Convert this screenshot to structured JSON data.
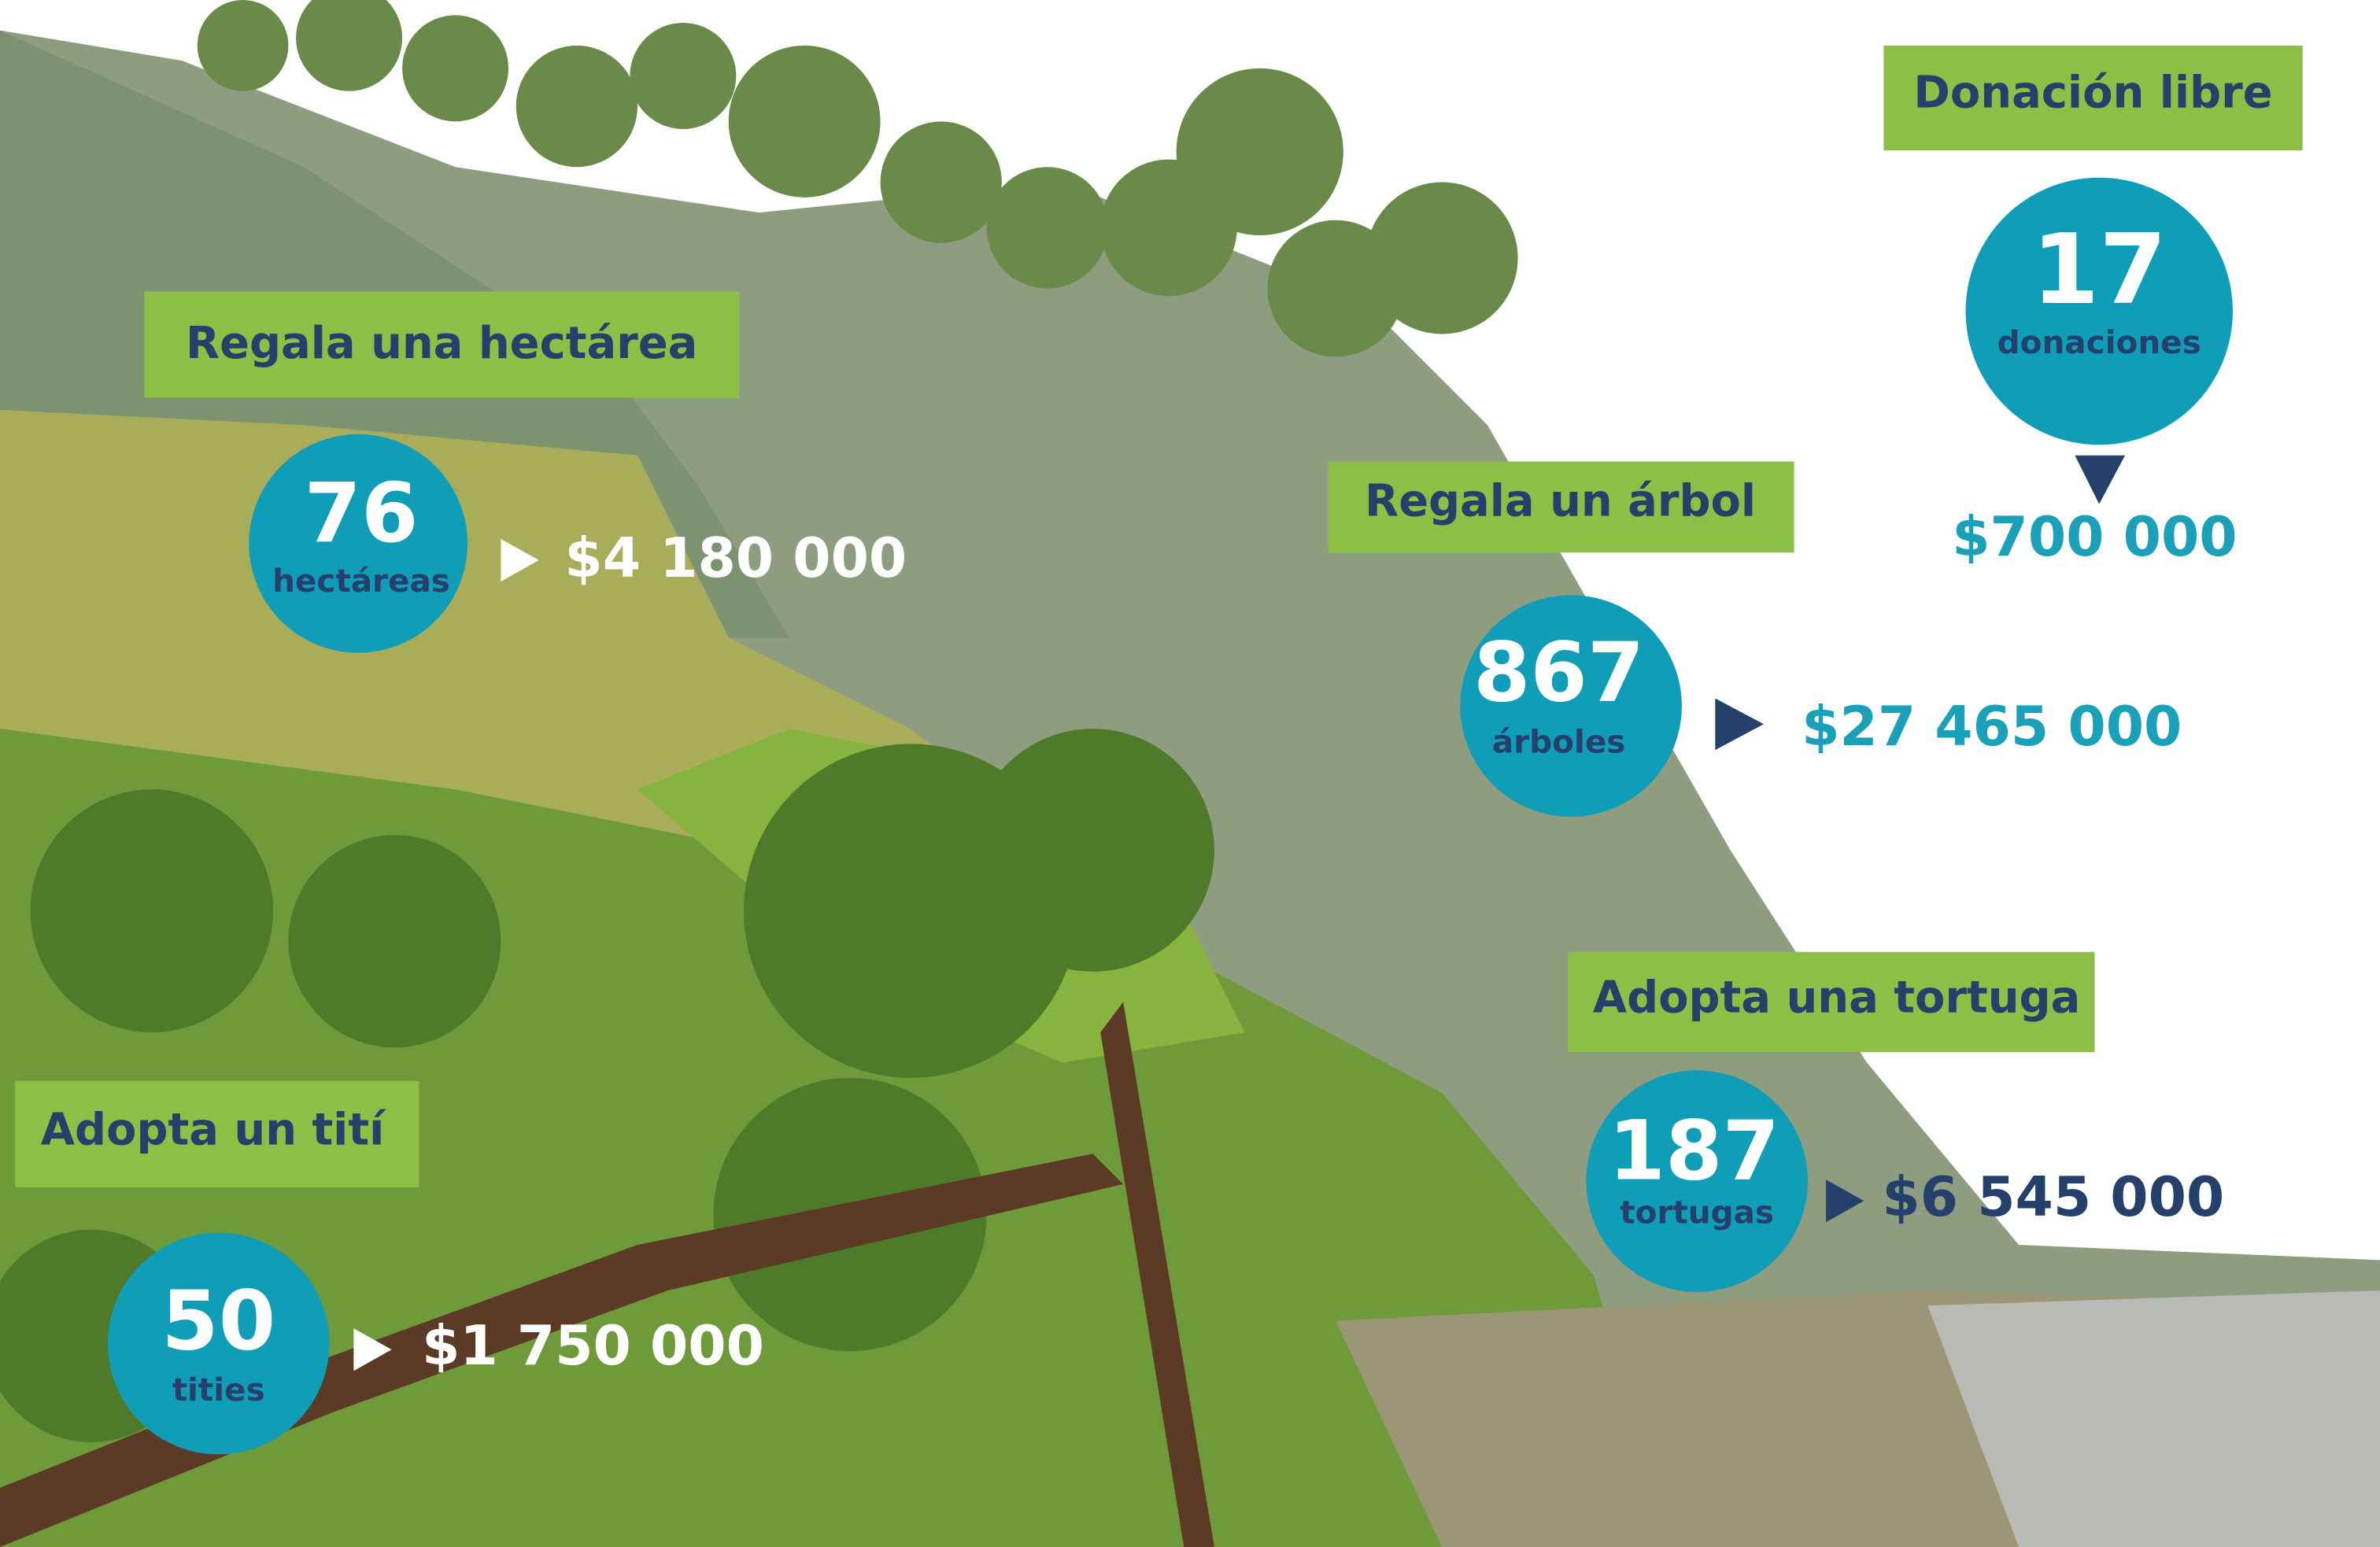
{
  "items": [
    {
      "title": "Regala una hectárea",
      "count": 76,
      "unit": "hectáreas",
      "amount": "$4 180 000"
    },
    {
      "title": "Adopta un tití",
      "count": 50,
      "unit": "tities",
      "amount": "$1 750 000"
    },
    {
      "title": "Regala un árbol",
      "count": 867,
      "unit": "árboles",
      "amount": "$27 465 000"
    },
    {
      "title": "Adopta una tortuga",
      "count": 187,
      "unit": "tortugas",
      "amount": "$6 545 000"
    },
    {
      "title": "Donación libre",
      "count": 17,
      "unit": "donaciones",
      "amount": "$700 000"
    }
  ]
}
